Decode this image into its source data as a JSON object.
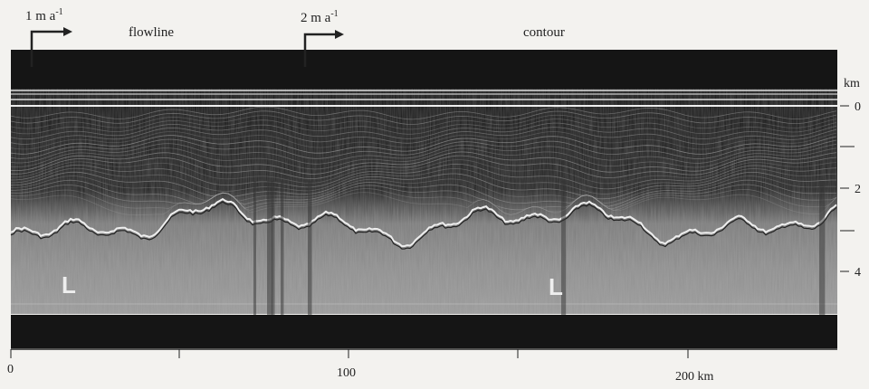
{
  "annotations": [
    {
      "text": "1 m a",
      "superscript": "-1"
    },
    {
      "text": "flowline"
    },
    {
      "text": "2 m a",
      "superscript": "-1"
    },
    {
      "text": "contour"
    }
  ],
  "right_axis": {
    "unit": "km",
    "ticks": [
      "0",
      "2",
      "4"
    ]
  },
  "bottom_axis": {
    "ticks": [
      "0",
      "100",
      "200 km"
    ]
  },
  "markers": [
    "L",
    "L"
  ]
}
